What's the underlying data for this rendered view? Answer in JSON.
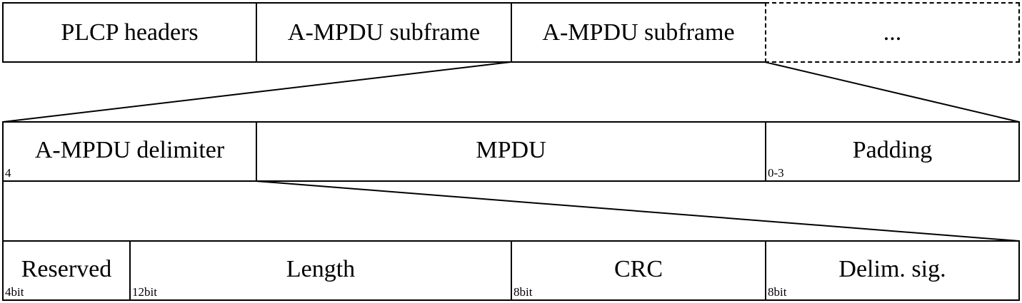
{
  "row1": {
    "plcp": "PLCP headers",
    "subframe_a": "A-MPDU subframe",
    "subframe_b": "A-MPDU subframe",
    "ellipsis": "..."
  },
  "row2": {
    "delimiter": {
      "label": "A-MPDU delimiter",
      "size": "4"
    },
    "mpdu": {
      "label": "MPDU"
    },
    "padding": {
      "label": "Padding",
      "size": "0-3"
    }
  },
  "row3": {
    "reserved": {
      "label": "Reserved",
      "size": "4bit"
    },
    "length": {
      "label": "Length",
      "size": "12bit"
    },
    "crc": {
      "label": "CRC",
      "size": "8bit"
    },
    "delim_sig": {
      "label": "Delim. sig.",
      "size": "8bit"
    }
  }
}
